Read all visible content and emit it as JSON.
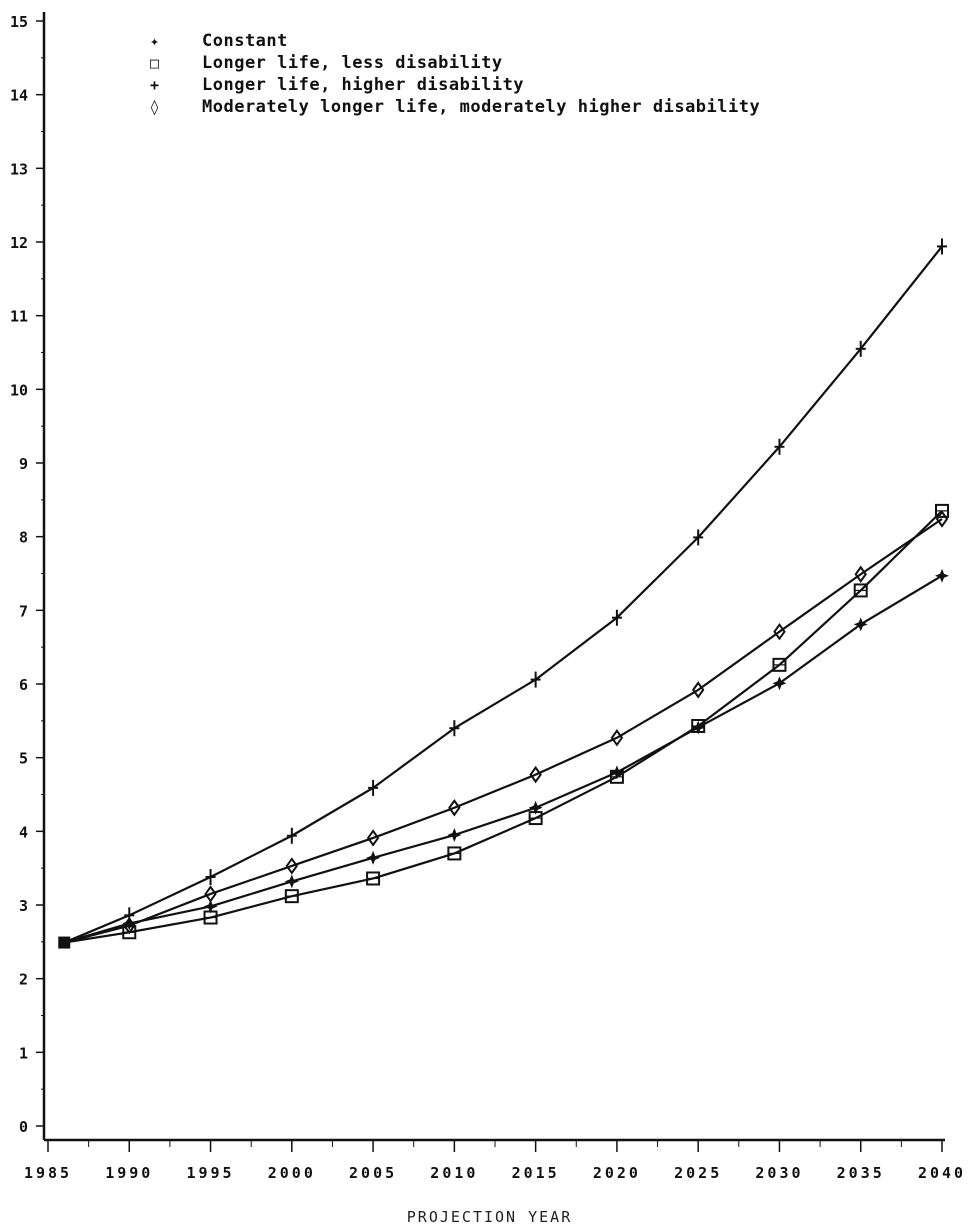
{
  "chart_data": {
    "type": "line",
    "title": "",
    "xlabel": "PROJECTION YEAR",
    "ylabel": "",
    "x": [
      1986,
      1990,
      1995,
      2000,
      2005,
      2010,
      2015,
      2020,
      2025,
      2030,
      2035,
      2040
    ],
    "xticks": [
      "1985",
      "1990",
      "1995",
      "2000",
      "2005",
      "2010",
      "2015",
      "2020",
      "2025",
      "2030",
      "2035",
      "2040"
    ],
    "yticks": [
      "0",
      "1",
      "2",
      "3",
      "4",
      "5",
      "6",
      "7",
      "8",
      "9",
      "10",
      "11",
      "12",
      "13",
      "14",
      "15"
    ],
    "ylim": [
      0,
      15
    ],
    "xlim": [
      1985,
      2040
    ],
    "grid": false,
    "legend_position": "top-left",
    "series": [
      {
        "name": "Constant",
        "marker": "star",
        "values": [
          2.49,
          2.75,
          2.98,
          3.32,
          3.64,
          3.95,
          4.32,
          4.8,
          5.41,
          6.01,
          6.81,
          7.47
        ]
      },
      {
        "name": "Longer life, less disability",
        "marker": "square",
        "values": [
          2.49,
          2.63,
          2.83,
          3.12,
          3.36,
          3.7,
          4.18,
          4.74,
          5.43,
          6.26,
          7.27,
          8.35
        ]
      },
      {
        "name": "Longer life, higher disability",
        "marker": "plus",
        "values": [
          2.49,
          2.86,
          3.38,
          3.94,
          4.59,
          5.4,
          6.06,
          6.9,
          7.99,
          9.22,
          10.55,
          11.94
        ]
      },
      {
        "name": "Moderately longer life, moderately higher disability",
        "marker": "diamond",
        "values": [
          2.49,
          2.72,
          3.15,
          3.53,
          3.91,
          4.32,
          4.77,
          5.27,
          5.92,
          6.71,
          7.49,
          8.24
        ]
      }
    ]
  },
  "legend": {
    "items": [
      {
        "label": "Constant",
        "symbol": "✦"
      },
      {
        "label": "Longer life, less disability",
        "symbol": "□"
      },
      {
        "label": "Longer life, higher disability",
        "symbol": "+"
      },
      {
        "label": "Moderately longer life, moderately higher disability",
        "symbol": "◊"
      }
    ]
  },
  "axis": {
    "xlabel": "PROJECTION YEAR"
  }
}
